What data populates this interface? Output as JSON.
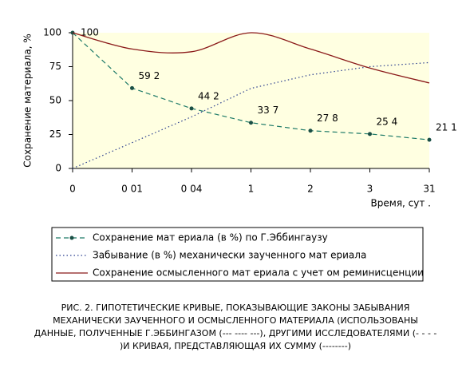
{
  "chart_data": {
    "type": "line",
    "y_label": "Сохранение материала, %",
    "x_label": "Время, сут .",
    "categories": [
      "0",
      "0 01",
      "0 04",
      "1",
      "2",
      "3",
      "31"
    ],
    "ylim": [
      0,
      100
    ],
    "yticks": [
      0,
      25,
      50,
      75,
      100
    ],
    "series": [
      {
        "name": "Сохранение мат ериала (в %)  по Г.Эббингаузу",
        "color": "#1e7a68",
        "style": "dashed",
        "values": [
          100,
          59.2,
          44.2,
          33.7,
          27.8,
          25.4,
          21.1
        ],
        "value_labels": [
          "100",
          "59 2",
          "44 2",
          "33 7",
          "27 8",
          "25 4",
          "21 1"
        ]
      },
      {
        "name": "Забывание (в %) механически заученного мат ериала",
        "color": "#2b3f8f",
        "style": "dotted",
        "values": [
          0,
          19,
          38,
          59,
          69,
          75,
          78
        ]
      },
      {
        "name": "Сохранение осмысленного мат ериала с учет ом реминисценции",
        "color": "#8b1a1a",
        "style": "solid",
        "values": [
          100,
          88,
          86,
          100,
          88,
          74,
          63
        ]
      }
    ]
  },
  "caption": [
    "РИС. 2. ГИПОТЕТИЧЕСКИЕ КРИВЫЕ, ПОКАЗЫВАЮЩИЕ ЗАКОНЫ ЗАБЫВАНИЯ",
    "МЕХАНИЧЕСКИ ЗАУЧЕННОГО И ОСМЫСЛЕННОГО МАТЕРИАЛА (ИСПОЛЬЗОВАНЫ",
    "ДАННЫЕ, ПОЛУЧЕННЫЕ Г.ЭББИНГАЗОМ (--- ---- ---), ДРУГИМИ ИССЛЕДОВАТЕЛЯМИ (- - - -",
    ")И КРИВАЯ, ПРЕДСТАВЛЯЮЩАЯ ИХ СУММУ (--------)"
  ]
}
